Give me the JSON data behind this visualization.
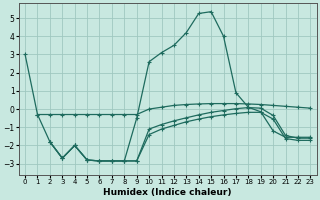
{
  "xlabel": "Humidex (Indice chaleur)",
  "bg_color": "#c8e8e0",
  "line_color": "#1e6b5e",
  "grid_color": "#a0c8c0",
  "ylim": [
    -3.6,
    5.8
  ],
  "xlim": [
    -0.5,
    23.5
  ],
  "yticks": [
    -3,
    -2,
    -1,
    0,
    1,
    2,
    3,
    4,
    5
  ],
  "xticks": [
    0,
    1,
    2,
    3,
    4,
    5,
    6,
    7,
    8,
    9,
    10,
    11,
    12,
    13,
    14,
    15,
    16,
    17,
    18,
    19,
    20,
    21,
    22,
    23
  ],
  "line_main_x": [
    0,
    1,
    2,
    3,
    4,
    5,
    6,
    7,
    8,
    9,
    10,
    11,
    12,
    13,
    14,
    15,
    16,
    17,
    18,
    19,
    20,
    21,
    22,
    23
  ],
  "line_main_y": [
    3.0,
    -0.3,
    -1.8,
    -2.7,
    -2.0,
    -2.8,
    -2.85,
    -2.85,
    -2.85,
    -0.5,
    2.6,
    3.1,
    3.5,
    4.2,
    5.25,
    5.35,
    4.0,
    0.9,
    0.1,
    -0.15,
    -1.2,
    -1.55,
    -1.55,
    -1.55
  ],
  "line_upper_x": [
    1,
    2,
    3,
    4,
    5,
    6,
    7,
    8,
    9,
    10,
    11,
    12,
    13,
    14,
    15,
    16,
    17,
    18,
    19,
    20,
    21,
    22,
    23
  ],
  "line_upper_y": [
    -0.3,
    -0.3,
    -0.3,
    -0.3,
    -0.3,
    -0.3,
    -0.3,
    -0.3,
    -0.3,
    0.0,
    0.1,
    0.2,
    0.25,
    0.28,
    0.3,
    0.3,
    0.3,
    0.28,
    0.25,
    0.2,
    0.15,
    0.1,
    0.05
  ],
  "line_mid_x": [
    2,
    3,
    4,
    5,
    6,
    7,
    8,
    9,
    10,
    11,
    12,
    13,
    14,
    15,
    16,
    17,
    18,
    19,
    20,
    21,
    22,
    23
  ],
  "line_mid_y": [
    -1.8,
    -2.7,
    -2.0,
    -2.8,
    -2.85,
    -2.85,
    -2.85,
    -2.85,
    -1.1,
    -0.85,
    -0.65,
    -0.48,
    -0.32,
    -0.18,
    -0.08,
    0.02,
    0.08,
    0.05,
    -0.35,
    -1.45,
    -1.6,
    -1.6
  ],
  "line_low_x": [
    2,
    3,
    4,
    5,
    6,
    7,
    8,
    9,
    10,
    11,
    12,
    13,
    14,
    15,
    16,
    17,
    18,
    19,
    20,
    21,
    22,
    23
  ],
  "line_low_y": [
    -1.8,
    -2.7,
    -2.0,
    -2.8,
    -2.85,
    -2.85,
    -2.85,
    -2.85,
    -1.4,
    -1.1,
    -0.9,
    -0.7,
    -0.55,
    -0.42,
    -0.32,
    -0.24,
    -0.18,
    -0.18,
    -0.55,
    -1.62,
    -1.72,
    -1.72
  ]
}
